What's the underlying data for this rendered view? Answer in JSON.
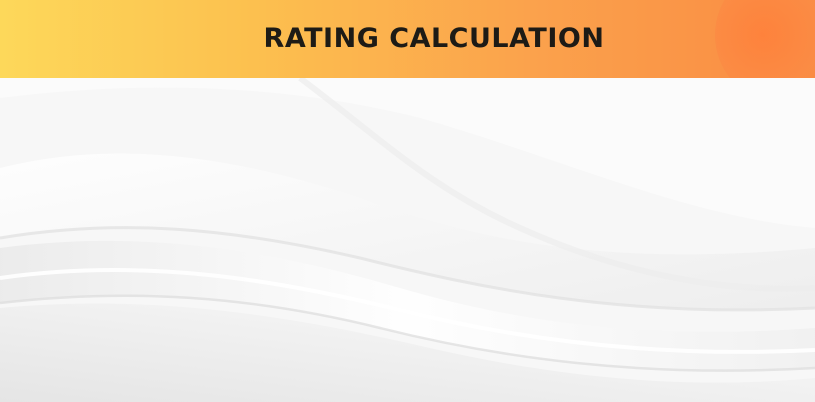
{
  "header": {
    "title": "RATING CALCULATION",
    "gradient_colors": [
      "#fdd85a",
      "#fcc14f",
      "#fba24c",
      "#f98b43"
    ],
    "title_color": "#1d1b16"
  },
  "background": {
    "base_color": "#f7f7f7",
    "wave_highlight": "#ffffff",
    "wave_shadow": "#e6e6e6"
  }
}
